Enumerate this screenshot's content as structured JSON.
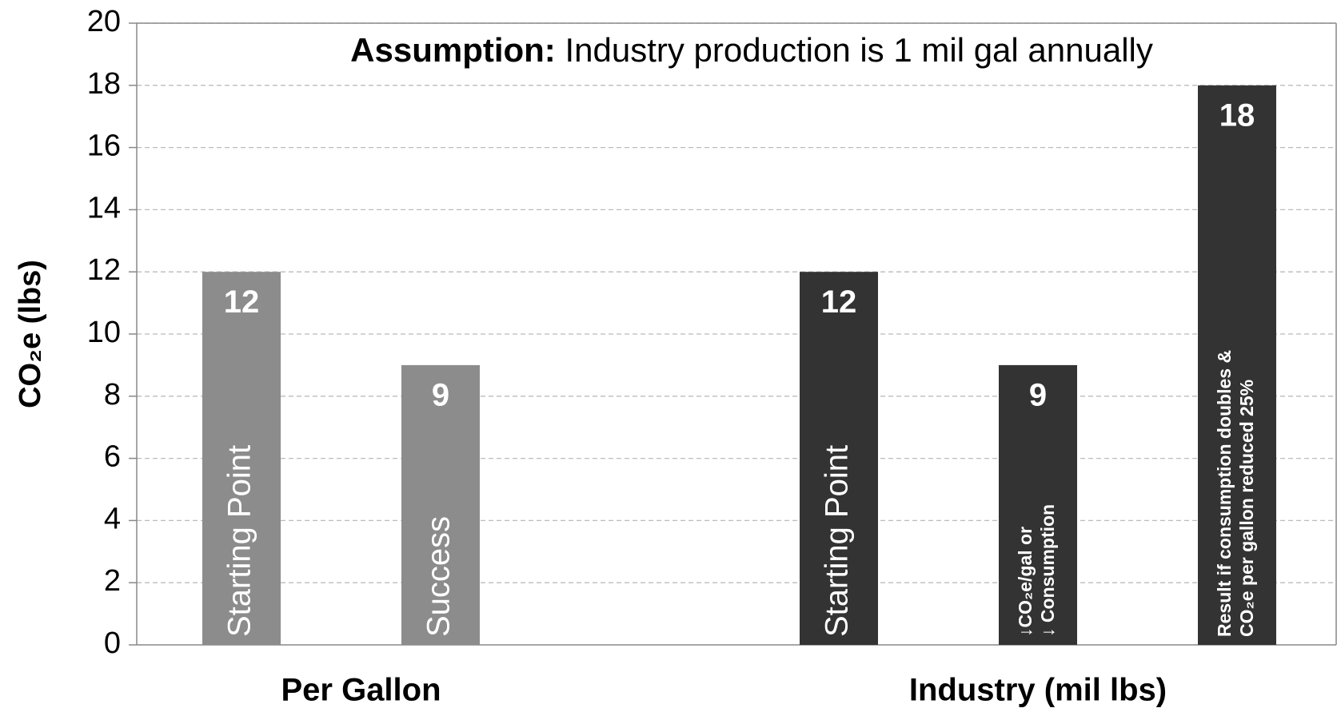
{
  "chart_data": {
    "type": "bar",
    "title_bold": "Assumption:",
    "title": "Industry production is 1 mil gal annually",
    "y_label": "CO₂e (lbs)",
    "categories": [
      [
        "Starting Point"
      ],
      [
        "Success"
      ],
      null,
      [
        "Starting Point"
      ],
      [
        "↓CO₂e/gal     or",
        "↓ Consumption"
      ],
      [
        "Result if consumption doubles &",
        "CO₂e per gallon  reduced 25%"
      ]
    ],
    "series": [
      {
        "name": "Per Gallon",
        "color": "#8c8c8c",
        "values": [
          12,
          9,
          null,
          null,
          null,
          null
        ]
      },
      {
        "name": "Industry (mil lbs)",
        "color": "#333333",
        "values": [
          null,
          null,
          null,
          12,
          9,
          18
        ]
      }
    ],
    "ylim": [
      0,
      20
    ],
    "yticks": [
      0,
      2,
      4,
      6,
      8,
      10,
      12,
      14,
      16,
      18,
      20
    ],
    "grid": true
  }
}
